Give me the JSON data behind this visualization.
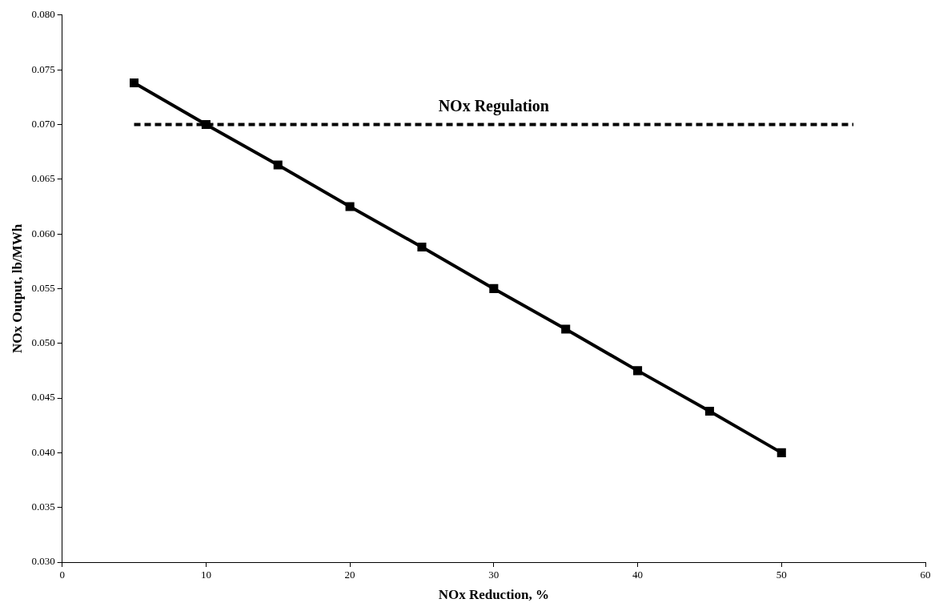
{
  "chart_data": {
    "type": "line",
    "xlabel": "NOx Reduction, %",
    "ylabel": "NOx Output, lb/MWh",
    "xlim": [
      0,
      60
    ],
    "xticks": [
      0,
      10,
      20,
      30,
      40,
      50,
      60
    ],
    "ylim": [
      0.03,
      0.08
    ],
    "yticks": [
      {
        "value": 0.03,
        "label": "0.030"
      },
      {
        "value": 0.035,
        "label": "0.035"
      },
      {
        "value": 0.04,
        "label": "0.040"
      },
      {
        "value": 0.045,
        "label": "0.045"
      },
      {
        "value": 0.05,
        "label": "0.050"
      },
      {
        "value": 0.055,
        "label": "0.055"
      },
      {
        "value": 0.06,
        "label": "0.060"
      },
      {
        "value": 0.065,
        "label": "0.065"
      },
      {
        "value": 0.07,
        "label": "0.070"
      },
      {
        "value": 0.075,
        "label": "0.075"
      },
      {
        "value": 0.08,
        "label": "0.080"
      }
    ],
    "grid": false,
    "legend": false,
    "series": [
      {
        "color": "#000000",
        "marker": "square",
        "line_style": "solid",
        "x": [
          5,
          10,
          15,
          20,
          25,
          30,
          35,
          40,
          45,
          50
        ],
        "values": [
          0.0738,
          0.07,
          0.0663,
          0.0625,
          0.0588,
          0.055,
          0.0513,
          0.0475,
          0.0438,
          0.04
        ]
      },
      {
        "name": "NOx Regulation",
        "color": "#000000",
        "marker": "none",
        "line_style": "dashed",
        "x": [
          5,
          55
        ],
        "values": [
          0.07,
          0.07
        ]
      }
    ]
  }
}
